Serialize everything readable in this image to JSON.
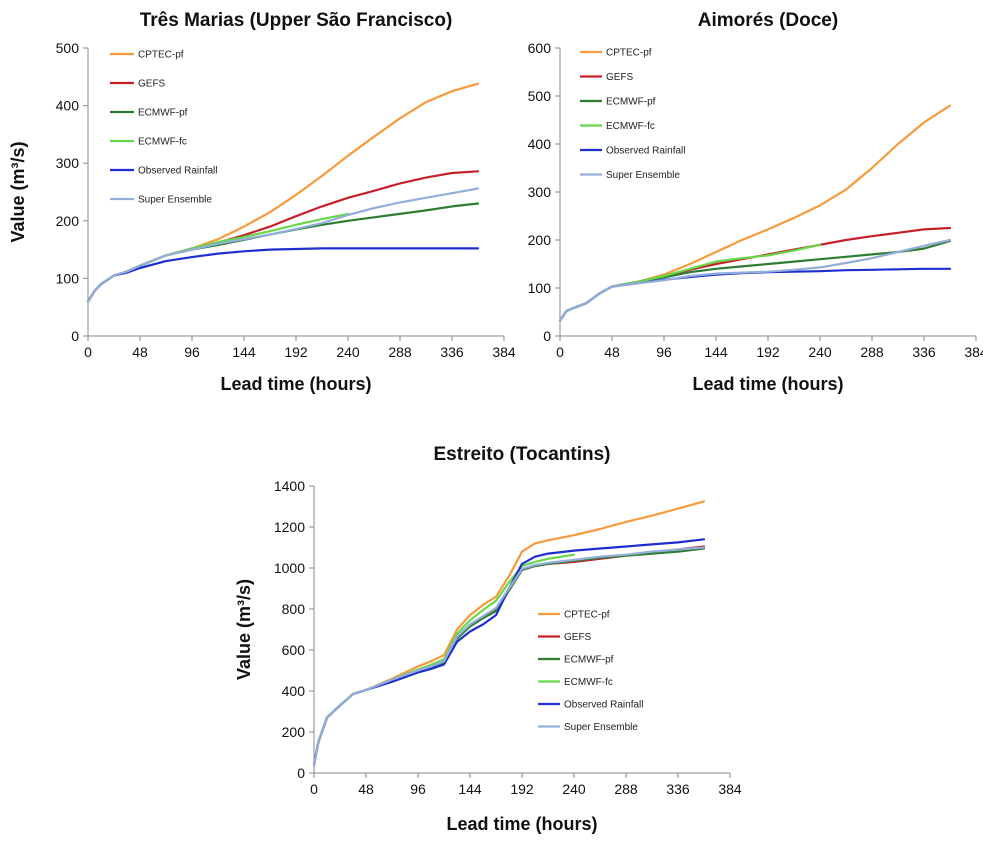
{
  "chart_data": [
    {
      "type": "line",
      "title": "Três Marias (Upper São Francisco)",
      "xlabel": "Lead time (hours)",
      "ylabel": "Value (m³/s)",
      "xlim": [
        0,
        384
      ],
      "ylim": [
        0,
        500
      ],
      "xticks": [
        "0",
        "48",
        "96",
        "144",
        "192",
        "240",
        "288",
        "336",
        "384"
      ],
      "yticks": [
        "0",
        "100",
        "200",
        "300",
        "400",
        "500"
      ],
      "legend": "top-left",
      "series": [
        {
          "name": "CPTEC-pf",
          "color": "#f79a3c",
          "x": [
            0,
            6,
            12,
            24,
            36,
            48,
            72,
            96,
            120,
            144,
            168,
            192,
            216,
            240,
            264,
            288,
            312,
            336,
            360
          ],
          "y": [
            60,
            78,
            90,
            105,
            112,
            122,
            140,
            152,
            168,
            190,
            215,
            245,
            278,
            313,
            346,
            378,
            406,
            425,
            438
          ]
        },
        {
          "name": "GEFS",
          "color": "#c8202a",
          "x": [
            0,
            6,
            12,
            24,
            36,
            48,
            72,
            96,
            120,
            144,
            168,
            192,
            216,
            240,
            264,
            288,
            312,
            336,
            360
          ],
          "y": [
            60,
            78,
            90,
            105,
            112,
            122,
            140,
            152,
            162,
            175,
            190,
            208,
            225,
            240,
            252,
            265,
            275,
            283,
            286
          ]
        },
        {
          "name": "ECMWF-pf",
          "color": "#2e7d32",
          "x": [
            0,
            6,
            12,
            24,
            36,
            48,
            72,
            96,
            120,
            144,
            168,
            192,
            216,
            240,
            264,
            288,
            312,
            336,
            360
          ],
          "y": [
            60,
            78,
            90,
            105,
            112,
            122,
            140,
            150,
            158,
            167,
            176,
            185,
            193,
            200,
            206,
            212,
            218,
            225,
            230
          ]
        },
        {
          "name": "ECMWF-fc",
          "color": "#66d84a",
          "x": [
            0,
            6,
            12,
            24,
            36,
            48,
            72,
            96,
            120,
            144,
            168,
            192,
            216,
            240
          ],
          "y": [
            60,
            78,
            90,
            105,
            112,
            122,
            140,
            152,
            163,
            172,
            182,
            193,
            203,
            212
          ]
        },
        {
          "name": "Observed Rainfall",
          "color": "#1f2ed1",
          "x": [
            0,
            6,
            12,
            24,
            36,
            48,
            72,
            96,
            120,
            144,
            168,
            192,
            216,
            240,
            264,
            288,
            312,
            336,
            360
          ],
          "y": [
            60,
            78,
            90,
            105,
            110,
            118,
            130,
            137,
            143,
            147,
            150,
            151,
            152,
            152,
            152,
            152,
            152,
            152,
            152
          ]
        },
        {
          "name": "Super Ensemble",
          "color": "#93aedb",
          "x": [
            0,
            6,
            12,
            24,
            36,
            48,
            72,
            96,
            120,
            144,
            168,
            192,
            216,
            240,
            264,
            288,
            312,
            336,
            360
          ],
          "y": [
            60,
            78,
            90,
            105,
            112,
            122,
            140,
            150,
            160,
            168,
            176,
            186,
            196,
            210,
            222,
            232,
            240,
            248,
            256
          ]
        }
      ]
    },
    {
      "type": "line",
      "title": "Aimorés (Doce)",
      "xlabel": "Lead time (hours)",
      "ylabel": "",
      "xlim": [
        0,
        384
      ],
      "ylim": [
        0,
        600
      ],
      "xticks": [
        "0",
        "48",
        "96",
        "144",
        "192",
        "240",
        "288",
        "336",
        "384"
      ],
      "yticks": [
        "0",
        "100",
        "200",
        "300",
        "400",
        "500",
        "600"
      ],
      "legend": "top-left",
      "series": [
        {
          "name": "CPTEC-pf",
          "color": "#f79a3c",
          "x": [
            0,
            6,
            12,
            24,
            36,
            48,
            72,
            96,
            120,
            144,
            168,
            192,
            216,
            240,
            264,
            288,
            312,
            336,
            360
          ],
          "y": [
            32,
            52,
            58,
            68,
            88,
            103,
            113,
            128,
            150,
            175,
            200,
            222,
            246,
            272,
            305,
            350,
            400,
            445,
            480
          ]
        },
        {
          "name": "GEFS",
          "color": "#c8202a",
          "x": [
            0,
            6,
            12,
            24,
            36,
            48,
            72,
            96,
            120,
            144,
            168,
            192,
            216,
            240,
            264,
            288,
            312,
            336,
            360
          ],
          "y": [
            32,
            52,
            58,
            68,
            88,
            103,
            113,
            125,
            138,
            150,
            160,
            170,
            180,
            190,
            200,
            208,
            215,
            222,
            225
          ]
        },
        {
          "name": "ECMWF-pf",
          "color": "#2e7d32",
          "x": [
            0,
            6,
            12,
            24,
            36,
            48,
            72,
            96,
            120,
            144,
            168,
            192,
            216,
            240,
            264,
            288,
            312,
            336,
            360
          ],
          "y": [
            32,
            52,
            58,
            68,
            88,
            103,
            113,
            122,
            133,
            140,
            145,
            150,
            155,
            160,
            165,
            170,
            175,
            182,
            198
          ]
        },
        {
          "name": "ECMWF-fc",
          "color": "#66d84a",
          "x": [
            0,
            6,
            12,
            24,
            36,
            48,
            72,
            96,
            120,
            144,
            168,
            192,
            216,
            240
          ],
          "y": [
            32,
            52,
            58,
            68,
            88,
            103,
            113,
            125,
            140,
            155,
            162,
            168,
            178,
            190
          ]
        },
        {
          "name": "Observed Rainfall",
          "color": "#1f2ed1",
          "x": [
            0,
            6,
            12,
            24,
            36,
            48,
            72,
            96,
            120,
            144,
            168,
            192,
            216,
            240,
            264,
            288,
            312,
            336,
            360
          ],
          "y": [
            32,
            52,
            58,
            68,
            88,
            103,
            110,
            117,
            123,
            128,
            131,
            133,
            134,
            135,
            137,
            138,
            139,
            140,
            140
          ]
        },
        {
          "name": "Super Ensemble",
          "color": "#93aedb",
          "x": [
            0,
            6,
            12,
            24,
            36,
            48,
            72,
            96,
            120,
            144,
            168,
            192,
            216,
            240,
            264,
            288,
            312,
            336,
            360
          ],
          "y": [
            32,
            52,
            58,
            68,
            88,
            103,
            110,
            116,
            125,
            130,
            132,
            134,
            138,
            143,
            152,
            162,
            175,
            188,
            200
          ]
        }
      ]
    },
    {
      "type": "line",
      "title": "Estreito (Tocantins)",
      "xlabel": "Lead time (hours)",
      "ylabel": "Value (m³/s)",
      "xlim": [
        0,
        384
      ],
      "ylim": [
        0,
        1400
      ],
      "xticks": [
        "0",
        "48",
        "96",
        "144",
        "192",
        "240",
        "288",
        "336",
        "384"
      ],
      "yticks": [
        "0",
        "200",
        "400",
        "600",
        "800",
        "1000",
        "1200",
        "1400"
      ],
      "legend": "bottom-right",
      "series": [
        {
          "name": "CPTEC-pf",
          "color": "#f79a3c",
          "x": [
            0,
            4,
            12,
            24,
            36,
            48,
            72,
            96,
            108,
            120,
            132,
            144,
            156,
            168,
            180,
            192,
            204,
            216,
            240,
            264,
            288,
            312,
            336,
            360
          ],
          "y": [
            40,
            150,
            270,
            330,
            385,
            405,
            460,
            520,
            545,
            575,
            700,
            770,
            820,
            860,
            960,
            1080,
            1120,
            1135,
            1160,
            1190,
            1225,
            1255,
            1290,
            1325
          ]
        },
        {
          "name": "GEFS",
          "color": "#c8202a",
          "x": [
            0,
            4,
            12,
            24,
            36,
            48,
            72,
            96,
            108,
            120,
            132,
            144,
            156,
            168,
            180,
            192,
            204,
            216,
            240,
            264,
            288,
            312,
            336,
            360
          ],
          "y": [
            40,
            150,
            270,
            330,
            385,
            405,
            455,
            500,
            520,
            545,
            660,
            720,
            760,
            800,
            900,
            990,
            1010,
            1020,
            1030,
            1045,
            1060,
            1075,
            1090,
            1105
          ]
        },
        {
          "name": "ECMWF-pf",
          "color": "#2e7d32",
          "x": [
            0,
            4,
            12,
            24,
            36,
            48,
            72,
            96,
            108,
            120,
            132,
            144,
            156,
            168,
            180,
            192,
            204,
            216,
            240,
            264,
            288,
            312,
            336,
            360
          ],
          "y": [
            40,
            150,
            270,
            330,
            385,
            405,
            450,
            495,
            515,
            540,
            655,
            715,
            755,
            790,
            890,
            990,
            1010,
            1020,
            1035,
            1050,
            1060,
            1070,
            1080,
            1095
          ]
        },
        {
          "name": "ECMWF-fc",
          "color": "#66d84a",
          "x": [
            0,
            4,
            12,
            24,
            36,
            48,
            72,
            96,
            108,
            120,
            132,
            144,
            156,
            168,
            180,
            192,
            204,
            216,
            240
          ],
          "y": [
            40,
            150,
            270,
            330,
            385,
            405,
            455,
            505,
            528,
            555,
            680,
            745,
            795,
            840,
            930,
            1010,
            1030,
            1045,
            1065
          ]
        },
        {
          "name": "Observed Rainfall",
          "color": "#1f2ed1",
          "x": [
            0,
            4,
            12,
            24,
            36,
            48,
            72,
            96,
            108,
            120,
            132,
            144,
            156,
            168,
            180,
            192,
            204,
            216,
            240,
            264,
            288,
            312,
            336,
            360
          ],
          "y": [
            40,
            150,
            270,
            330,
            385,
            405,
            445,
            490,
            508,
            530,
            640,
            690,
            725,
            770,
            900,
            1020,
            1055,
            1070,
            1085,
            1095,
            1105,
            1115,
            1125,
            1140
          ]
        },
        {
          "name": "Super Ensemble",
          "color": "#93aedb",
          "x": [
            0,
            4,
            12,
            24,
            36,
            48,
            72,
            96,
            108,
            120,
            132,
            144,
            156,
            168,
            180,
            192,
            204,
            216,
            240,
            264,
            288,
            312,
            336,
            360
          ],
          "y": [
            40,
            150,
            270,
            330,
            385,
            405,
            455,
            500,
            520,
            545,
            665,
            725,
            765,
            805,
            900,
            995,
            1015,
            1025,
            1040,
            1055,
            1065,
            1080,
            1090,
            1100
          ]
        }
      ]
    }
  ]
}
